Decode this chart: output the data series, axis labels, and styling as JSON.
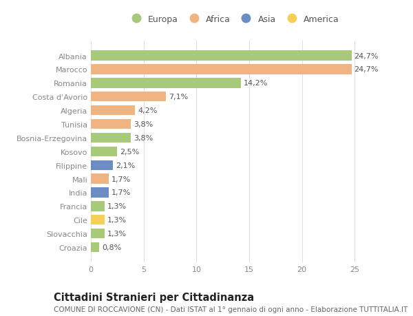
{
  "categories": [
    "Albania",
    "Marocco",
    "Romania",
    "Costa d'Avorio",
    "Algeria",
    "Tunisia",
    "Bosnia-Erzegovina",
    "Kosovo",
    "Filippine",
    "Mali",
    "India",
    "Francia",
    "Cile",
    "Slovacchia",
    "Croazia"
  ],
  "values": [
    24.7,
    24.7,
    14.2,
    7.1,
    4.2,
    3.8,
    3.8,
    2.5,
    2.1,
    1.7,
    1.7,
    1.3,
    1.3,
    1.3,
    0.8
  ],
  "labels": [
    "24,7%",
    "24,7%",
    "14,2%",
    "7,1%",
    "4,2%",
    "3,8%",
    "3,8%",
    "2,5%",
    "2,1%",
    "1,7%",
    "1,7%",
    "1,3%",
    "1,3%",
    "1,3%",
    "0,8%"
  ],
  "continents": [
    "Europa",
    "Africa",
    "Europa",
    "Africa",
    "Africa",
    "Africa",
    "Europa",
    "Europa",
    "Asia",
    "Africa",
    "Asia",
    "Europa",
    "America",
    "Europa",
    "Europa"
  ],
  "continent_colors": {
    "Europa": "#a8c87a",
    "Africa": "#f0b482",
    "Asia": "#6b8dc4",
    "America": "#f5cf5a"
  },
  "legend_order": [
    "Europa",
    "Africa",
    "Asia",
    "America"
  ],
  "title": "Cittadini Stranieri per Cittadinanza",
  "subtitle": "COMUNE DI ROCCAVIONE (CN) - Dati ISTAT al 1° gennaio di ogni anno - Elaborazione TUTTITALIA.IT",
  "xlim": [
    0,
    27
  ],
  "xticks": [
    0,
    5,
    10,
    15,
    20,
    25
  ],
  "background_color": "#ffffff",
  "grid_color": "#e0e0e0",
  "bar_height": 0.72,
  "label_fontsize": 8.0,
  "tick_fontsize": 8.0,
  "title_fontsize": 10.5,
  "subtitle_fontsize": 7.5
}
